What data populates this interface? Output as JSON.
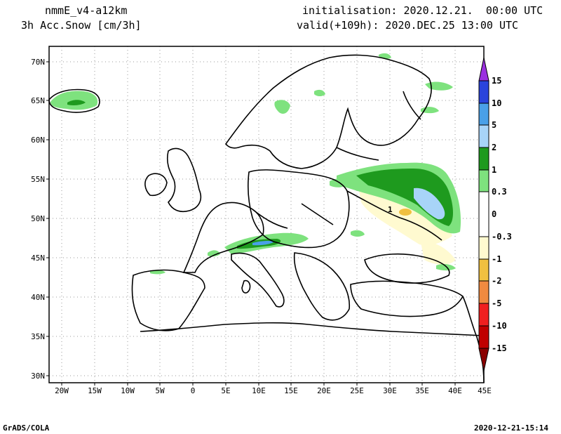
{
  "header": {
    "model": "nmmE_v4-a12km",
    "variable": "3h Acc.Snow [cm/3h]",
    "init": "initialisation: 2020.12.21.  00:00 UTC",
    "valid": "valid(+109h): 2020.DEC.25 13:00 UTC"
  },
  "footer": {
    "credit": "GrADS/COLA",
    "timestamp": "2020-12-21-15:14"
  },
  "map": {
    "lon_ticks": [
      "20W",
      "15W",
      "10W",
      "5W",
      "0",
      "5E",
      "10E",
      "15E",
      "20E",
      "25E",
      "30E",
      "35E",
      "40E",
      "45E"
    ],
    "lat_ticks": [
      "70N",
      "65N",
      "60N",
      "55N",
      "50N",
      "45N",
      "40N",
      "35N",
      "30N"
    ],
    "grid": true,
    "lon_range": [
      -22,
      45
    ],
    "lat_range": [
      29,
      72
    ]
  },
  "colorbar": {
    "labels": [
      "15",
      "10",
      "5",
      "2",
      "1",
      "0.3",
      "0",
      "-0.3",
      "-1",
      "-2",
      "-5",
      "-10",
      "-15"
    ],
    "colors": {
      "purple": "#9b30e0",
      "blue": "#2a44dc",
      "mid_blue": "#4aa0e8",
      "light_blue": "#a8d4f8",
      "dark_green": "#1e9a1e",
      "light_green": "#7ee27e",
      "white": "#ffffff",
      "pale_yellow": "#fffad0",
      "yellow": "#f0c040",
      "orange": "#f08a40",
      "red": "#f02020",
      "dark_red": "#c00000",
      "maroon": "#8a0000"
    }
  },
  "annotation": "1"
}
